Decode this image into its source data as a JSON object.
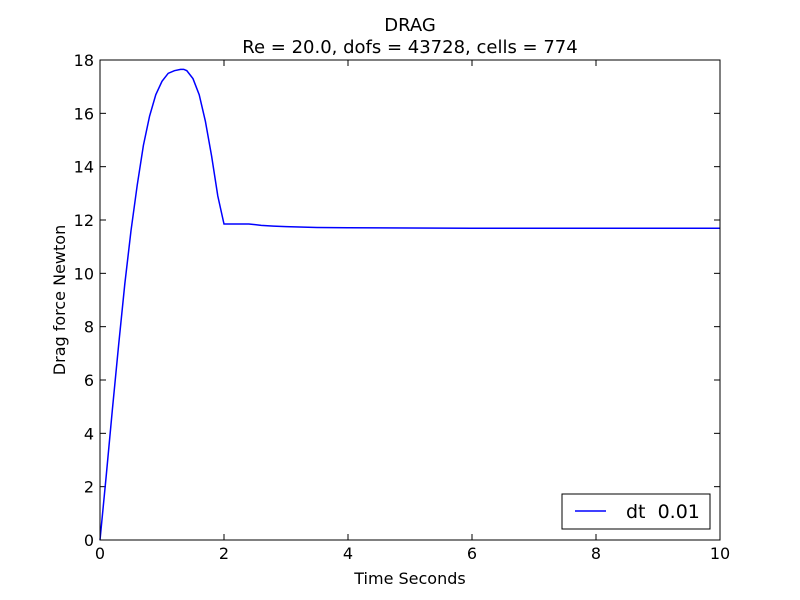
{
  "chart_data": {
    "type": "line",
    "title": "DRAG",
    "subtitle": "Re = 20.0, dofs = 43728, cells = 774",
    "xlabel": "Time Seconds",
    "ylabel": "Drag force Newton",
    "xlim": [
      0,
      10
    ],
    "ylim": [
      0,
      18
    ],
    "xticks": [
      0,
      2,
      4,
      6,
      8,
      10
    ],
    "yticks": [
      0,
      2,
      4,
      6,
      8,
      10,
      12,
      14,
      16,
      18
    ],
    "grid": false,
    "legend_position": "lower-right",
    "colors": {
      "series": "#0000ff",
      "axes": "#000000",
      "background": "#ffffff"
    },
    "series": [
      {
        "name": "dt  0.01",
        "x": [
          0,
          0.1,
          0.2,
          0.3,
          0.4,
          0.5,
          0.6,
          0.7,
          0.8,
          0.9,
          1.0,
          1.1,
          1.2,
          1.3,
          1.35,
          1.4,
          1.5,
          1.6,
          1.7,
          1.8,
          1.9,
          2.0,
          2.05,
          2.2,
          2.4,
          2.6,
          2.8,
          3.0,
          3.5,
          4.0,
          5.0,
          6.0,
          7.0,
          8.0,
          9.0,
          10.0
        ],
        "y": [
          0,
          2.4,
          4.9,
          7.3,
          9.6,
          11.6,
          13.3,
          14.8,
          15.9,
          16.7,
          17.2,
          17.5,
          17.6,
          17.65,
          17.65,
          17.6,
          17.3,
          16.7,
          15.7,
          14.4,
          12.9,
          11.85,
          11.85,
          11.85,
          11.85,
          11.8,
          11.77,
          11.75,
          11.72,
          11.71,
          11.7,
          11.69,
          11.69,
          11.69,
          11.69,
          11.69
        ]
      }
    ]
  }
}
